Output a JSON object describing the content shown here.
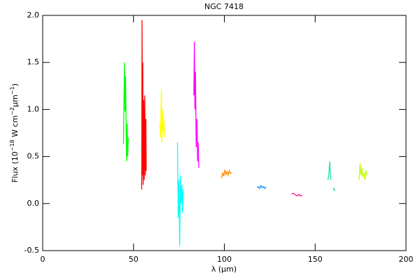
{
  "chart_data": {
    "type": "line",
    "title": "NGC 7418",
    "xlabel": "λ (μm)",
    "ylabel": [
      "Flux (10",
      "−18",
      " W cm",
      "−2",
      "μm",
      "−1",
      ")"
    ],
    "xlim": [
      0,
      200
    ],
    "xticks": [
      0,
      50,
      100,
      150,
      200
    ],
    "ylim": [
      -0.5,
      2.0
    ],
    "yticks": [
      -0.5,
      {
        "value": 0,
        "label": "0.0"
      },
      0.5,
      {
        "value": 1,
        "label": "1.0"
      },
      1.5,
      {
        "value": 2,
        "label": "2.0"
      }
    ],
    "series": [
      {
        "color": "#00ff00",
        "x": [
          44.5,
          44.8,
          45.0,
          45.3,
          45.6,
          45.9,
          46.2,
          46.5,
          46.8,
          47.1
        ],
        "values": [
          0.63,
          1.2,
          1.5,
          0.98,
          1.35,
          0.9,
          0.45,
          0.85,
          0.5,
          0.7
        ]
      },
      {
        "color": "#ff0000",
        "x": [
          54.5,
          54.7,
          54.9,
          55.1,
          55.3,
          55.6,
          55.9,
          56.2,
          56.5,
          56.8,
          57.0
        ],
        "values": [
          0.15,
          1.95,
          0.3,
          1.5,
          0.2,
          1.1,
          0.25,
          1.15,
          0.3,
          0.9,
          0.35
        ]
      },
      {
        "color": "#ffff00",
        "x": [
          64.5,
          64.9,
          65.3,
          65.6,
          65.9,
          66.3,
          66.7,
          67.0
        ],
        "values": [
          0.85,
          0.7,
          1.22,
          0.65,
          1.0,
          0.75,
          0.9,
          0.7
        ]
      },
      {
        "color": "#00ffff",
        "x": [
          74.2,
          74.6,
          75.0,
          75.4,
          75.8,
          76.2,
          76.6,
          77.0,
          77.3
        ],
        "values": [
          0.65,
          -0.15,
          0.25,
          -0.45,
          0.3,
          0.0,
          0.2,
          -0.1,
          0.15
        ]
      },
      {
        "color": "#ff00ff",
        "x": [
          83.2,
          83.5,
          83.8,
          84.1,
          84.5,
          84.9,
          85.3,
          85.6,
          85.9
        ],
        "values": [
          1.15,
          1.72,
          1.0,
          1.4,
          0.6,
          0.9,
          0.45,
          0.65,
          0.38
        ]
      },
      {
        "color": "#ff8c00",
        "x": [
          98.5,
          99.1,
          99.7,
          100.3,
          100.9,
          101.5,
          102.1,
          102.7,
          103.3,
          104.0
        ],
        "values": [
          0.27,
          0.33,
          0.29,
          0.36,
          0.31,
          0.34,
          0.3,
          0.35,
          0.32,
          0.33
        ]
      },
      {
        "color": "#1e90ff",
        "x": [
          118.0,
          118.7,
          119.4,
          120.1,
          120.8,
          121.5,
          122.2,
          123.0
        ],
        "values": [
          0.17,
          0.18,
          0.16,
          0.19,
          0.17,
          0.18,
          0.16,
          0.18
        ]
      },
      {
        "color": "#ff1493",
        "x": [
          137.0,
          137.8,
          138.6,
          139.4,
          140.2,
          141.0,
          141.8,
          143.0
        ],
        "values": [
          0.1,
          0.11,
          0.1,
          0.09,
          0.08,
          0.1,
          0.08,
          0.09
        ]
      },
      {
        "color": "#20e0b0",
        "x": [
          157.0,
          157.5,
          158.0,
          158.5,
          159.0,
          null,
          160.0,
          160.5,
          161.0
        ],
        "values": [
          0.25,
          0.3,
          0.45,
          0.26,
          0.25,
          null,
          0.17,
          0.14,
          0.15
        ]
      },
      {
        "color": "#c0ff00",
        "x": [
          174.2,
          174.7,
          175.2,
          175.7,
          176.2,
          176.8,
          177.4,
          178.0,
          178.6
        ],
        "values": [
          0.25,
          0.43,
          0.3,
          0.38,
          0.28,
          0.33,
          0.25,
          0.35,
          0.3
        ]
      }
    ]
  }
}
